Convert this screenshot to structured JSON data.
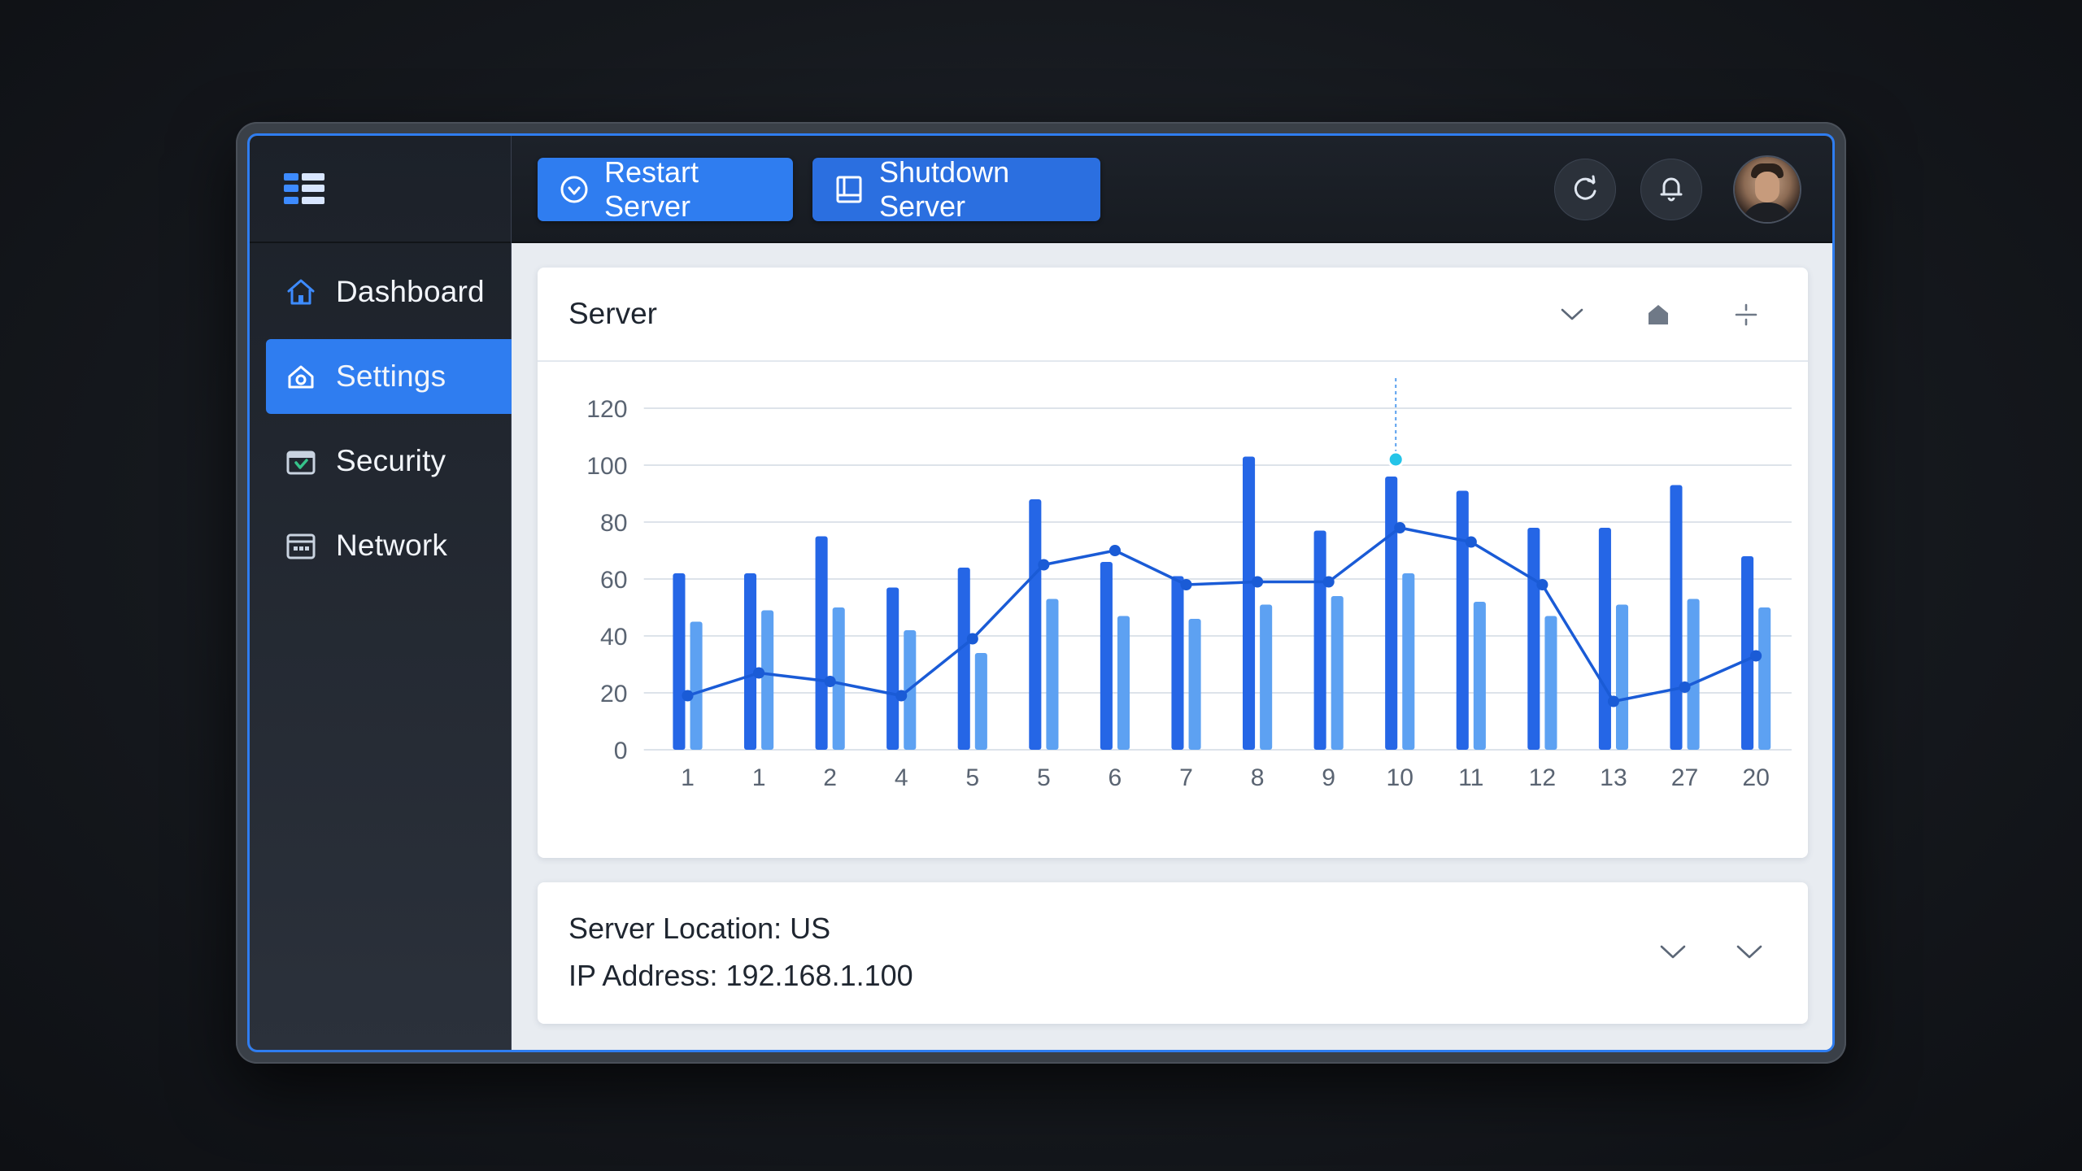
{
  "topbar": {
    "restart_label": "Restart Server",
    "shutdown_label": "Shutdown Server"
  },
  "sidebar": {
    "items": [
      {
        "label": "Dashboard",
        "icon": "home-icon",
        "active": false
      },
      {
        "label": "Settings",
        "icon": "settings-icon",
        "active": true
      },
      {
        "label": "Security",
        "icon": "security-icon",
        "active": false
      },
      {
        "label": "Network",
        "icon": "network-icon",
        "active": false
      }
    ]
  },
  "server_card": {
    "title": "Server"
  },
  "info": {
    "location": "Server Location: US",
    "ip": "IP Address: 192.168.1.100"
  },
  "colors": {
    "accent": "#2f7df0",
    "bar_dark": "#2566e6",
    "bar_light": "#5da1f2",
    "line": "#1a5bd6",
    "highlight": "#25c4e8"
  },
  "chart_data": {
    "type": "bar",
    "categories": [
      "1",
      "1",
      "2",
      "4",
      "5",
      "5",
      "6",
      "7",
      "8",
      "9",
      "10",
      "11",
      "12",
      "13",
      "27",
      "20"
    ],
    "ylim": [
      0,
      120
    ],
    "yticks": [
      "0",
      "20",
      "40",
      "60",
      "80",
      "100",
      "120"
    ],
    "grid": true,
    "series": [
      {
        "kind": "bar",
        "values": [
          62,
          62,
          75,
          57,
          64,
          88,
          66,
          61,
          103,
          77,
          96,
          91,
          78,
          78,
          93,
          68
        ]
      },
      {
        "kind": "bar",
        "values": [
          45,
          49,
          50,
          42,
          34,
          53,
          47,
          46,
          51,
          54,
          62,
          52,
          47,
          51,
          53,
          50
        ]
      },
      {
        "kind": "line",
        "values": [
          19,
          27,
          24,
          19,
          39,
          65,
          70,
          58,
          59,
          59,
          78,
          73,
          58,
          17,
          22,
          33
        ]
      }
    ],
    "highlight": {
      "index": 10,
      "value": 102
    }
  }
}
